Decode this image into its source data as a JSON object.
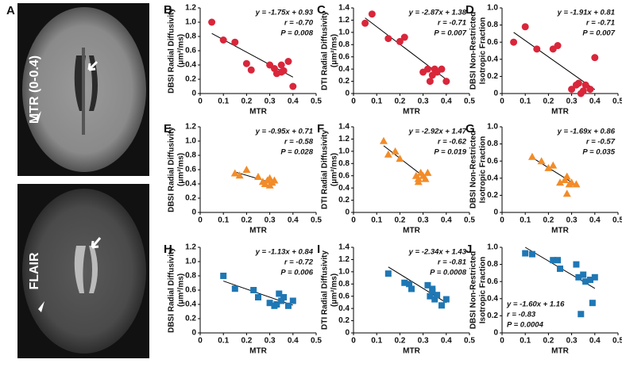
{
  "panel_a": {
    "label": "A",
    "images": [
      {
        "label": "MTR (0-0.4)"
      },
      {
        "label": "FLAIR"
      }
    ]
  },
  "chart_data": [
    {
      "type": "scatter",
      "panel": "B",
      "ylabel": [
        "DBSI Radial Diffusivity",
        "(μm²/ms)"
      ],
      "xlabel": "MTR",
      "color": "#d9263a",
      "marker": "circle",
      "x": [
        0.05,
        0.1,
        0.15,
        0.2,
        0.22,
        0.3,
        0.32,
        0.33,
        0.35,
        0.36,
        0.38,
        0.4,
        0.35
      ],
      "values": [
        1.0,
        0.75,
        0.72,
        0.42,
        0.33,
        0.4,
        0.35,
        0.28,
        0.4,
        0.32,
        0.45,
        0.1,
        0.3
      ],
      "fit": {
        "slope": -1.75,
        "intercept": 0.93
      },
      "annotations": [
        "y = -1.75x + 0.93",
        "r = -0.70",
        "P = 0.008"
      ],
      "annotation_corner": "top-right",
      "xlim": [
        0,
        0.5
      ],
      "xticks": [
        0,
        0.1,
        0.2,
        0.3,
        0.4,
        0.5
      ],
      "ylim": [
        0,
        1.2
      ],
      "yticks": [
        0,
        0.2,
        0.4,
        0.6,
        0.8,
        {
          "value": 1,
          "label": "1.0"
        },
        1.2
      ]
    },
    {
      "type": "scatter",
      "panel": "C",
      "ylabel": [
        "DTI Radial Diffusivity",
        "(μm²/ms)"
      ],
      "xlabel": "MTR",
      "color": "#d9263a",
      "marker": "circle",
      "x": [
        0.05,
        0.08,
        0.15,
        0.2,
        0.22,
        0.3,
        0.32,
        0.33,
        0.35,
        0.36,
        0.38,
        0.4,
        0.34
      ],
      "values": [
        1.15,
        1.3,
        0.9,
        0.85,
        0.92,
        0.35,
        0.4,
        0.2,
        0.4,
        0.35,
        0.4,
        0.2,
        0.3
      ],
      "fit": {
        "slope": -2.87,
        "intercept": 1.38
      },
      "annotations": [
        "y = -2.87x + 1.38",
        "r = -0.71",
        "P = 0.007"
      ],
      "annotation_corner": "top-right",
      "xlim": [
        0,
        0.5
      ],
      "xticks": [
        0,
        0.1,
        0.2,
        0.3,
        0.4,
        0.5
      ],
      "ylim": [
        0,
        1.4
      ],
      "yticks": [
        0,
        0.2,
        0.4,
        0.6,
        0.8,
        {
          "value": 1,
          "label": "1.0"
        },
        1.2,
        1.4
      ]
    },
    {
      "type": "scatter",
      "panel": "D",
      "ylabel": [
        "DBSI Non-Restricted",
        "Isotropic Fraction"
      ],
      "xlabel": "MTR",
      "color": "#d9263a",
      "marker": "circle",
      "x": [
        0.05,
        0.1,
        0.15,
        0.22,
        0.24,
        0.3,
        0.32,
        0.33,
        0.35,
        0.36,
        0.38,
        0.4,
        0.34
      ],
      "values": [
        0.6,
        0.78,
        0.52,
        0.52,
        0.56,
        0.05,
        0.1,
        0.12,
        0.03,
        0.1,
        0.05,
        0.42,
        0.0
      ],
      "fit": {
        "slope": -1.91,
        "intercept": 0.81
      },
      "annotations": [
        "y = -1.91x + 0.81",
        "r = -0.71",
        "P = 0.007"
      ],
      "annotation_corner": "top-right",
      "xlim": [
        0,
        0.5
      ],
      "xticks": [
        0,
        0.1,
        0.2,
        0.3,
        0.4,
        0.5
      ],
      "ylim": [
        0,
        1
      ],
      "yticks": [
        0,
        0.2,
        0.4,
        0.6,
        0.8,
        {
          "value": 1,
          "label": "1.0"
        }
      ]
    },
    {
      "type": "scatter",
      "panel": "E",
      "ylabel": [
        "DBSI Radial Diffusivity",
        "(μm²/ms)"
      ],
      "xlabel": "MTR",
      "color": "#f28c28",
      "marker": "triangle",
      "x": [
        0.15,
        0.17,
        0.2,
        0.25,
        0.28,
        0.29,
        0.3,
        0.31,
        0.32,
        0.3,
        0.27
      ],
      "values": [
        0.55,
        0.52,
        0.6,
        0.5,
        0.4,
        0.45,
        0.38,
        0.42,
        0.45,
        0.48,
        0.43
      ],
      "fit": {
        "slope": -0.95,
        "intercept": 0.71
      },
      "annotations": [
        "y = -0.95x + 0.71",
        "r = -0.58",
        "P = 0.028"
      ],
      "annotation_corner": "top-right",
      "xlim": [
        0,
        0.5
      ],
      "xticks": [
        0,
        0.1,
        0.2,
        0.3,
        0.4,
        0.5
      ],
      "ylim": [
        0,
        1.2
      ],
      "yticks": [
        0,
        0.2,
        0.4,
        0.6,
        0.8,
        {
          "value": 1,
          "label": "1.0"
        },
        1.2
      ]
    },
    {
      "type": "scatter",
      "panel": "F",
      "ylabel": [
        "DTI Radial Diffusivity",
        "(μm²/ms)"
      ],
      "xlabel": "MTR",
      "color": "#f28c28",
      "marker": "triangle",
      "x": [
        0.13,
        0.15,
        0.18,
        0.2,
        0.27,
        0.28,
        0.29,
        0.3,
        0.31,
        0.32,
        0.28
      ],
      "values": [
        1.17,
        0.95,
        1.0,
        0.88,
        0.6,
        0.5,
        0.65,
        0.6,
        0.55,
        0.65,
        0.55
      ],
      "fit": {
        "slope": -2.92,
        "intercept": 1.47
      },
      "annotations": [
        "y = -2.92x + 1.47",
        "r = -0.62",
        "P = 0.019"
      ],
      "annotation_corner": "top-right",
      "xlim": [
        0,
        0.5
      ],
      "xticks": [
        0,
        0.1,
        0.2,
        0.3,
        0.4,
        0.5
      ],
      "ylim": [
        0,
        1.4
      ],
      "yticks": [
        0,
        0.2,
        0.4,
        0.6,
        0.8,
        {
          "value": 1,
          "label": "1.0"
        },
        1.2,
        1.4
      ]
    },
    {
      "type": "scatter",
      "panel": "G",
      "ylabel": [
        "DBSI Non-Restricted",
        "Isotropic Fraction"
      ],
      "xlabel": "MTR",
      "color": "#f28c28",
      "marker": "triangle",
      "x": [
        0.13,
        0.17,
        0.2,
        0.22,
        0.25,
        0.27,
        0.28,
        0.29,
        0.3,
        0.32,
        0.28
      ],
      "values": [
        0.65,
        0.6,
        0.52,
        0.55,
        0.35,
        0.38,
        0.22,
        0.33,
        0.35,
        0.33,
        0.42
      ],
      "fit": {
        "slope": -1.69,
        "intercept": 0.86
      },
      "annotations": [
        "y = -1.69x + 0.86",
        "r = -0.57",
        "P = 0.035"
      ],
      "annotation_corner": "top-right",
      "xlim": [
        0,
        0.5
      ],
      "xticks": [
        0,
        0.1,
        0.2,
        0.3,
        0.4,
        0.5
      ],
      "ylim": [
        0,
        1
      ],
      "yticks": [
        0,
        0.2,
        0.4,
        0.6,
        0.8,
        {
          "value": 1,
          "label": "1.0"
        }
      ]
    },
    {
      "type": "scatter",
      "panel": "H",
      "ylabel": [
        "DBSI Radial Diffusivity",
        "(μm²/ms)"
      ],
      "xlabel": "MTR",
      "color": "#1f77b4",
      "marker": "square",
      "x": [
        0.1,
        0.15,
        0.23,
        0.25,
        0.3,
        0.33,
        0.34,
        0.35,
        0.36,
        0.38,
        0.4,
        0.32
      ],
      "values": [
        0.8,
        0.62,
        0.6,
        0.5,
        0.42,
        0.4,
        0.55,
        0.45,
        0.5,
        0.38,
        0.45,
        0.38
      ],
      "fit": {
        "slope": -1.13,
        "intercept": 0.84
      },
      "annotations": [
        "y = -1.13x + 0.84",
        "r = -0.72",
        "P = 0.006"
      ],
      "annotation_corner": "top-right",
      "xlim": [
        0,
        0.5
      ],
      "xticks": [
        0,
        0.1,
        0.2,
        0.3,
        0.4,
        0.5
      ],
      "ylim": [
        0,
        1.2
      ],
      "yticks": [
        0,
        0.2,
        0.4,
        0.6,
        0.8,
        {
          "value": 1,
          "label": "1.0"
        },
        1.2
      ]
    },
    {
      "type": "scatter",
      "panel": "I",
      "ylabel": [
        "DTI Radial Diffusivity",
        "(μm²/ms)"
      ],
      "xlabel": "MTR",
      "color": "#1f77b4",
      "marker": "square",
      "x": [
        0.15,
        0.22,
        0.24,
        0.25,
        0.32,
        0.33,
        0.34,
        0.35,
        0.36,
        0.38,
        0.4,
        0.34
      ],
      "values": [
        0.97,
        0.82,
        0.8,
        0.72,
        0.78,
        0.6,
        0.72,
        0.55,
        0.62,
        0.45,
        0.55,
        0.68
      ],
      "fit": {
        "slope": -2.34,
        "intercept": 1.43
      },
      "annotations": [
        "y = -2.34x + 1.43",
        "r = -0.81",
        "P = 0.0008"
      ],
      "annotation_corner": "top-right",
      "xlim": [
        0,
        0.5
      ],
      "xticks": [
        0,
        0.1,
        0.2,
        0.3,
        0.4,
        0.5
      ],
      "ylim": [
        0,
        1.4
      ],
      "yticks": [
        0,
        0.2,
        0.4,
        0.6,
        0.8,
        {
          "value": 1,
          "label": "1.0"
        },
        1.2,
        1.4
      ]
    },
    {
      "type": "scatter",
      "panel": "J",
      "ylabel": [
        "DBSI Non-Restricted",
        "Isotropic Fraction"
      ],
      "xlabel": "MTR",
      "color": "#1f77b4",
      "marker": "square",
      "x": [
        0.1,
        0.13,
        0.22,
        0.24,
        0.32,
        0.33,
        0.34,
        0.35,
        0.36,
        0.38,
        0.4,
        0.39,
        0.25
      ],
      "values": [
        0.93,
        0.92,
        0.85,
        0.85,
        0.8,
        0.65,
        0.22,
        0.68,
        0.6,
        0.62,
        0.65,
        0.35,
        0.75
      ],
      "fit": {
        "slope": -1.6,
        "intercept": 1.16
      },
      "annotations": [
        "y = -1.60x + 1.16",
        "r = -0.83",
        "P = 0.0004"
      ],
      "annotation_corner": "bottom-left",
      "xlim": [
        0,
        0.5
      ],
      "xticks": [
        0,
        0.1,
        0.2,
        0.3,
        0.4,
        0.5
      ],
      "ylim": [
        0,
        1
      ],
      "yticks": [
        0,
        0.2,
        0.4,
        0.6,
        0.8,
        {
          "value": 1,
          "label": "1.0"
        }
      ]
    }
  ]
}
